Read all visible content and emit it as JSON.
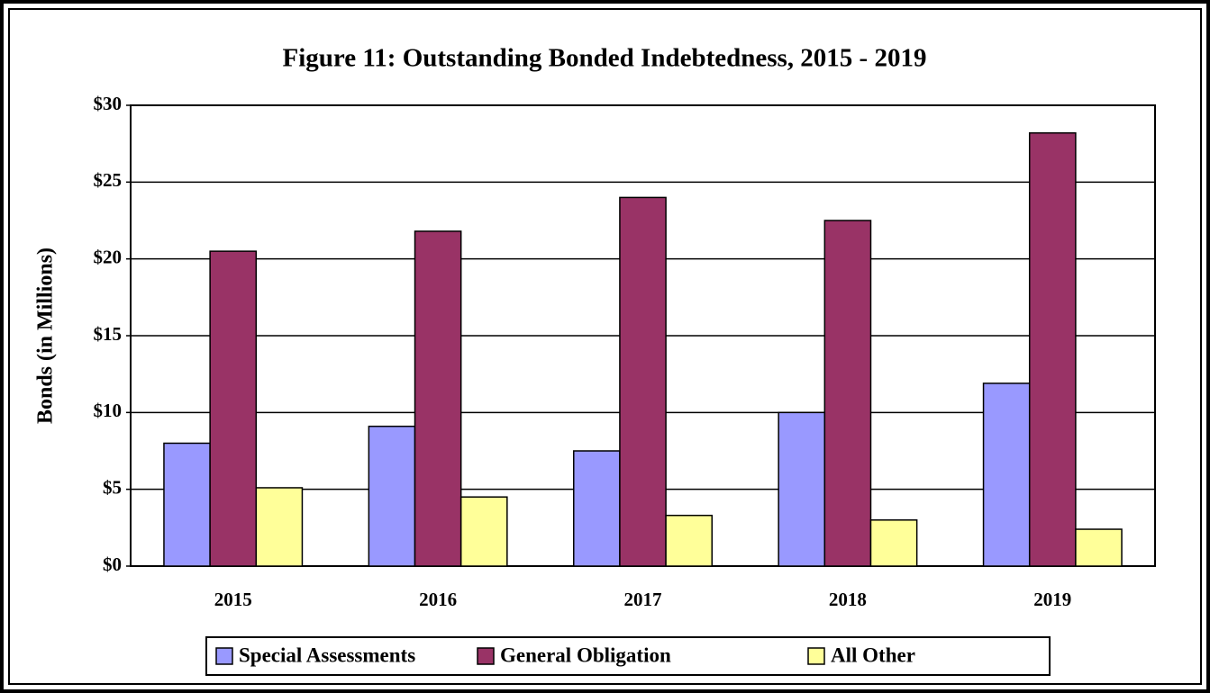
{
  "chart_data": {
    "type": "bar",
    "title": "Figure 11:  Outstanding Bonded Indebtedness, 2015 - 2019",
    "y_label": "Bonds (in Millions)",
    "categories": [
      "2015",
      "2016",
      "2017",
      "2018",
      "2019"
    ],
    "series": [
      {
        "name": "Special Assessments",
        "color": "#9999ff",
        "values": [
          8.0,
          9.1,
          7.5,
          10.0,
          11.9
        ]
      },
      {
        "name": "General Obligation",
        "color": "#993366",
        "values": [
          20.5,
          21.8,
          24.0,
          22.5,
          28.2
        ]
      },
      {
        "name": "All Other",
        "color": "#ffff99",
        "values": [
          5.1,
          4.5,
          3.3,
          3.0,
          2.4
        ]
      }
    ],
    "ylim": [
      0,
      30
    ],
    "yticks": [
      {
        "value": 0,
        "label": "$0"
      },
      {
        "value": 5,
        "label": "$5"
      },
      {
        "value": 10,
        "label": "$10"
      },
      {
        "value": 15,
        "label": "$15"
      },
      {
        "value": 20,
        "label": "$20"
      },
      {
        "value": 25,
        "label": "$25"
      },
      {
        "value": 30,
        "label": "$30"
      }
    ],
    "grid": true,
    "legend": "bottom"
  }
}
